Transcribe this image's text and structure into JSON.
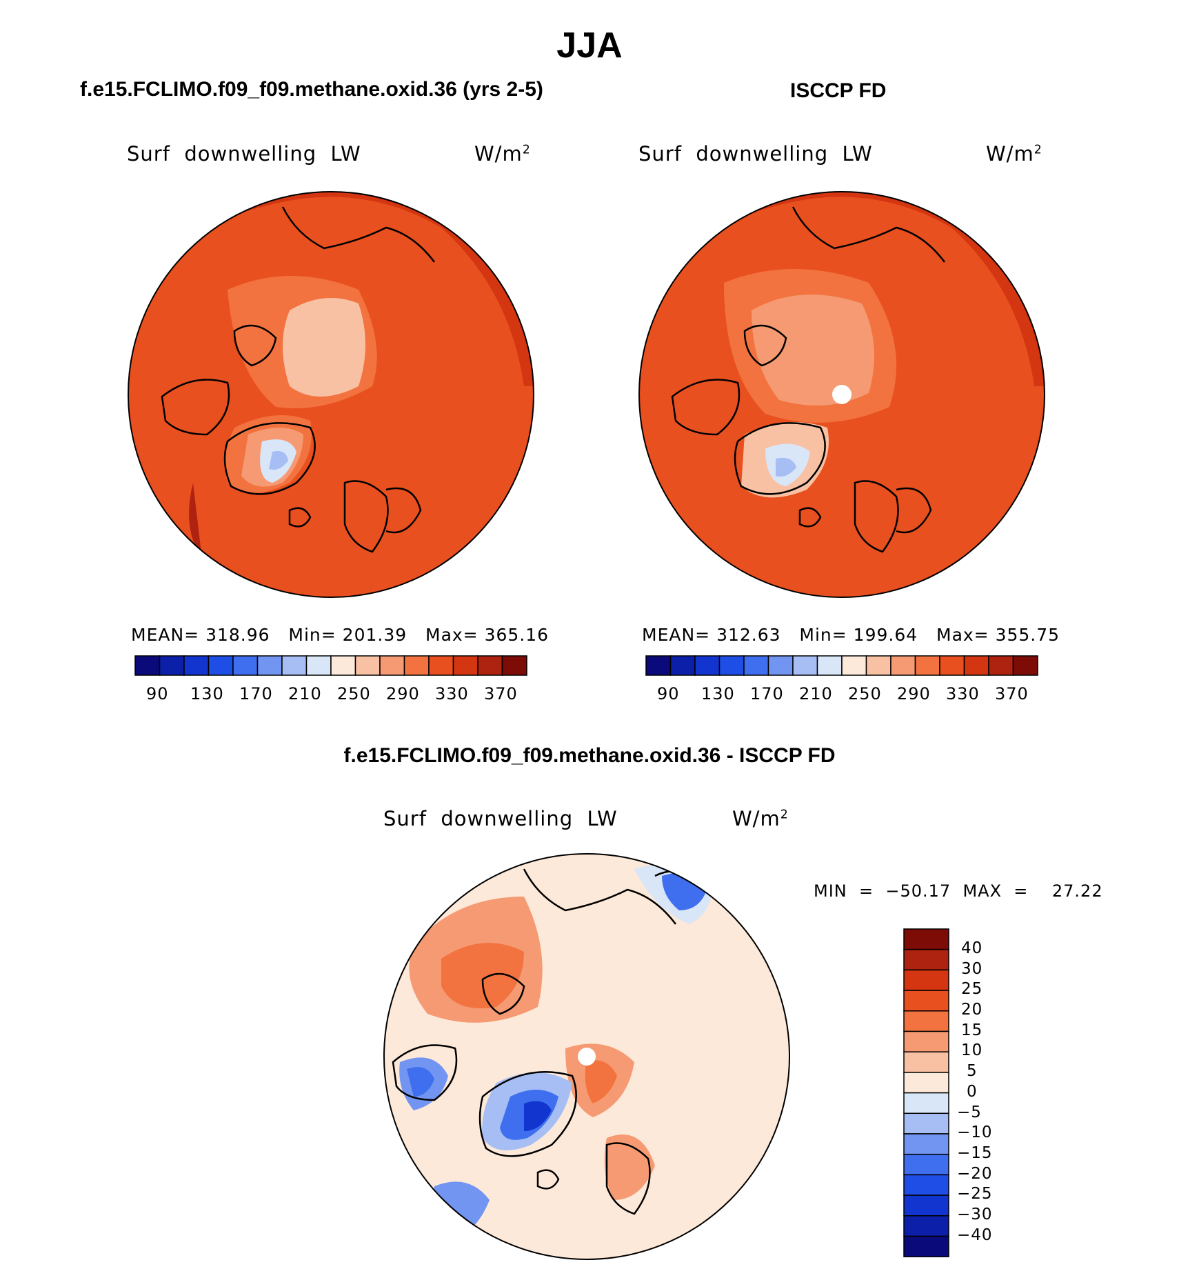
{
  "season": "JJA",
  "colors": {
    "abs_scale": [
      "#0a0a7a",
      "#0c1fa8",
      "#1235cf",
      "#1e4ee6",
      "#3f6fef",
      "#7395f2",
      "#a6bef4",
      "#d9e6f7",
      "#fde9d9",
      "#f8c1a3",
      "#f59a72",
      "#f2733f",
      "#e9501f",
      "#d33611",
      "#ae2210",
      "#7d0b06"
    ],
    "diff_scale": [
      "#0a0a7a",
      "#0c1fa8",
      "#1235cf",
      "#1e4ee6",
      "#3f6fef",
      "#7395f2",
      "#a6bef4",
      "#d9e6f7",
      "#fde9d9",
      "#f8c1a3",
      "#f59a72",
      "#f2733f",
      "#e9501f",
      "#d33611",
      "#ae2210",
      "#7d0b06"
    ]
  },
  "panels": {
    "model": {
      "title": "f.e15.FCLIMO.f09_f09.methane.oxid.36 (yrs 2-5)",
      "variable": "Surf  downwelling  LW",
      "units": "W/m",
      "units_sup": "2",
      "stats": {
        "mean_label": "MEAN=",
        "mean": "318.96",
        "min_label": "Min=",
        "min": "201.39",
        "max_label": "Max=",
        "max": "365.16"
      },
      "colorbar_ticks": [
        "90",
        "130",
        "170",
        "210",
        "250",
        "290",
        "330",
        "370"
      ]
    },
    "obs": {
      "title": "ISCCP FD",
      "variable": "Surf  downwelling  LW",
      "units": "W/m",
      "units_sup": "2",
      "stats": {
        "mean_label": "MEAN=",
        "mean": "312.63",
        "min_label": "Min=",
        "min": "199.64",
        "max_label": "Max=",
        "max": "355.75"
      },
      "colorbar_ticks": [
        "90",
        "130",
        "170",
        "210",
        "250",
        "290",
        "330",
        "370"
      ]
    },
    "diff": {
      "title": "f.e15.FCLIMO.f09_f09.methane.oxid.36 - ISCCP FD",
      "variable": "Surf  downwelling  LW",
      "units": "W/m",
      "units_sup": "2",
      "minmax": "MIN  =  −50.17  MAX  =    27.22",
      "colorbar_ticks": [
        "40",
        "30",
        "25",
        "20",
        "15",
        "10",
        "5",
        "0",
        "−5",
        "−10",
        "−15",
        "−20",
        "−25",
        "−30",
        "−40"
      ]
    }
  }
}
